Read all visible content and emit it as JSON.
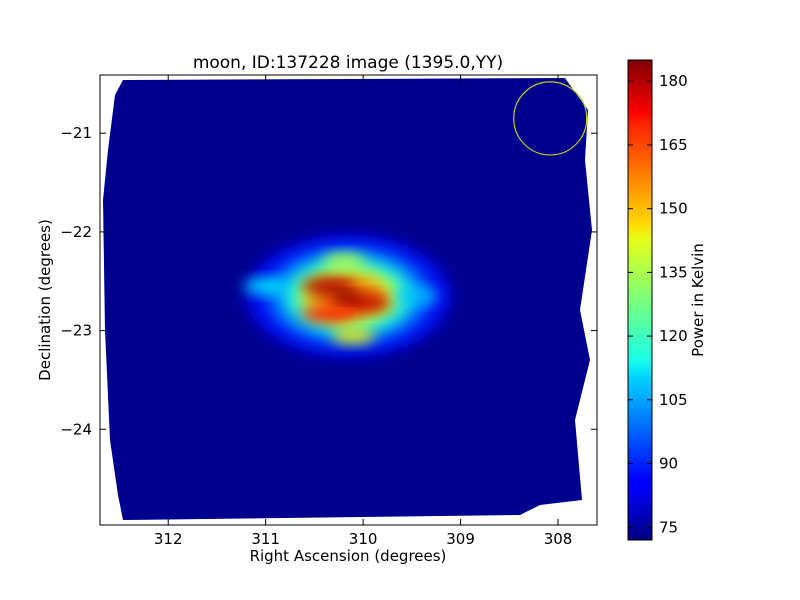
{
  "chart_data": {
    "type": "heatmap",
    "title": "moon, ID:137228 image (1395.0,YY)",
    "xlabel": "Right Ascension (degrees)",
    "ylabel": "Declination (degrees)",
    "x_inverted": true,
    "xlim": [
      312.7,
      307.6
    ],
    "ylim": [
      -24.97,
      -20.41
    ],
    "x_ticks": [
      {
        "value": 312,
        "label": "312"
      },
      {
        "value": 311,
        "label": "311"
      },
      {
        "value": 310,
        "label": "310"
      },
      {
        "value": 309,
        "label": "309"
      },
      {
        "value": 308,
        "label": "308"
      }
    ],
    "y_ticks": [
      {
        "value": -21,
        "label": "−21"
      },
      {
        "value": -22,
        "label": "−22"
      },
      {
        "value": -23,
        "label": "−23"
      },
      {
        "value": -24,
        "label": "−24"
      }
    ],
    "colormap": "jet",
    "background_level": 74,
    "colorbar": {
      "label": "Power in Kelvin",
      "range": [
        72,
        185
      ],
      "ticks": [
        {
          "value": 75,
          "label": "75"
        },
        {
          "value": 90,
          "label": "90"
        },
        {
          "value": 105,
          "label": "105"
        },
        {
          "value": 120,
          "label": "120"
        },
        {
          "value": 135,
          "label": "135"
        },
        {
          "value": 150,
          "label": "150"
        },
        {
          "value": 165,
          "label": "165"
        },
        {
          "value": 180,
          "label": "180"
        }
      ]
    },
    "source": {
      "center_ra": 310.15,
      "center_dec": -22.65,
      "peak_value": 185,
      "lobes": [
        {
          "ra": 310.35,
          "dec": -22.55,
          "value": 180
        },
        {
          "ra": 310.0,
          "dec": -22.72,
          "value": 178
        },
        {
          "ra": 310.35,
          "dec": -22.83,
          "value": 168
        },
        {
          "ra": 310.2,
          "dec": -22.3,
          "value": 135
        },
        {
          "ra": 310.1,
          "dec": -23.05,
          "value": 145
        },
        {
          "ra": 309.45,
          "dec": -22.65,
          "value": 108
        },
        {
          "ra": 311.0,
          "dec": -22.55,
          "value": 115
        }
      ]
    },
    "beam_circle": {
      "ra": 308.08,
      "dec": -20.85,
      "radius_deg": 0.37,
      "color": "#c8c820"
    },
    "colors": {
      "axes_border": "#000000",
      "background": "#ffffff",
      "map_edge": "#ffffff"
    },
    "grid": false
  }
}
